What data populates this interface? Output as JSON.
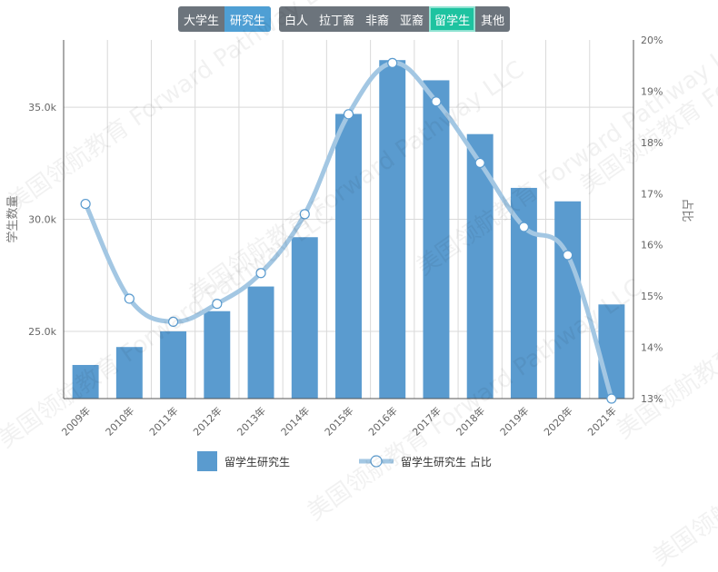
{
  "toggles": {
    "group1": [
      {
        "label": "大学生",
        "active": false
      },
      {
        "label": "研究生",
        "active": true
      }
    ],
    "group2": [
      {
        "label": "白人",
        "active": false
      },
      {
        "label": "拉丁裔",
        "active": false
      },
      {
        "label": "非裔",
        "active": false
      },
      {
        "label": "亚裔",
        "active": false
      },
      {
        "label": "留学生",
        "active": true
      },
      {
        "label": "其他",
        "active": false
      }
    ]
  },
  "watermark_text": "美国领航教育 Forward Pathway LLC",
  "chart_data": {
    "type": "bar",
    "categories": [
      "2009年",
      "2010年",
      "2011年",
      "2012年",
      "2013年",
      "2014年",
      "2015年",
      "2016年",
      "2017年",
      "2018年",
      "2019年",
      "2020年",
      "2021年"
    ],
    "series": [
      {
        "name": "留学生研究生",
        "type": "bar",
        "axis": "left",
        "color": "#5a9bcf",
        "values": [
          23500,
          24300,
          25000,
          25900,
          27000,
          29200,
          34700,
          37100,
          36200,
          33800,
          31400,
          30800,
          26200
        ]
      },
      {
        "name": "留学生研究生 占比",
        "type": "line",
        "axis": "right",
        "color": "#a3c7e3",
        "values": [
          16.8,
          14.95,
          14.5,
          14.85,
          15.45,
          16.6,
          18.55,
          19.55,
          18.8,
          17.6,
          16.35,
          15.8,
          13.0
        ]
      }
    ],
    "ylabel": "学生数量",
    "y2label": "占比",
    "ylim": [
      22000,
      38000
    ],
    "yticks": [
      25000,
      30000,
      35000
    ],
    "ytick_labels": [
      "25.0k",
      "30.0k",
      "35.0k"
    ],
    "y2lim": [
      13,
      20
    ],
    "y2ticks": [
      13,
      14,
      15,
      16,
      17,
      18,
      19,
      20
    ],
    "y2tick_labels": [
      "13%",
      "14%",
      "15%",
      "16%",
      "17%",
      "18%",
      "19%",
      "20%"
    ],
    "grid": true,
    "legend_position": "bottom"
  }
}
